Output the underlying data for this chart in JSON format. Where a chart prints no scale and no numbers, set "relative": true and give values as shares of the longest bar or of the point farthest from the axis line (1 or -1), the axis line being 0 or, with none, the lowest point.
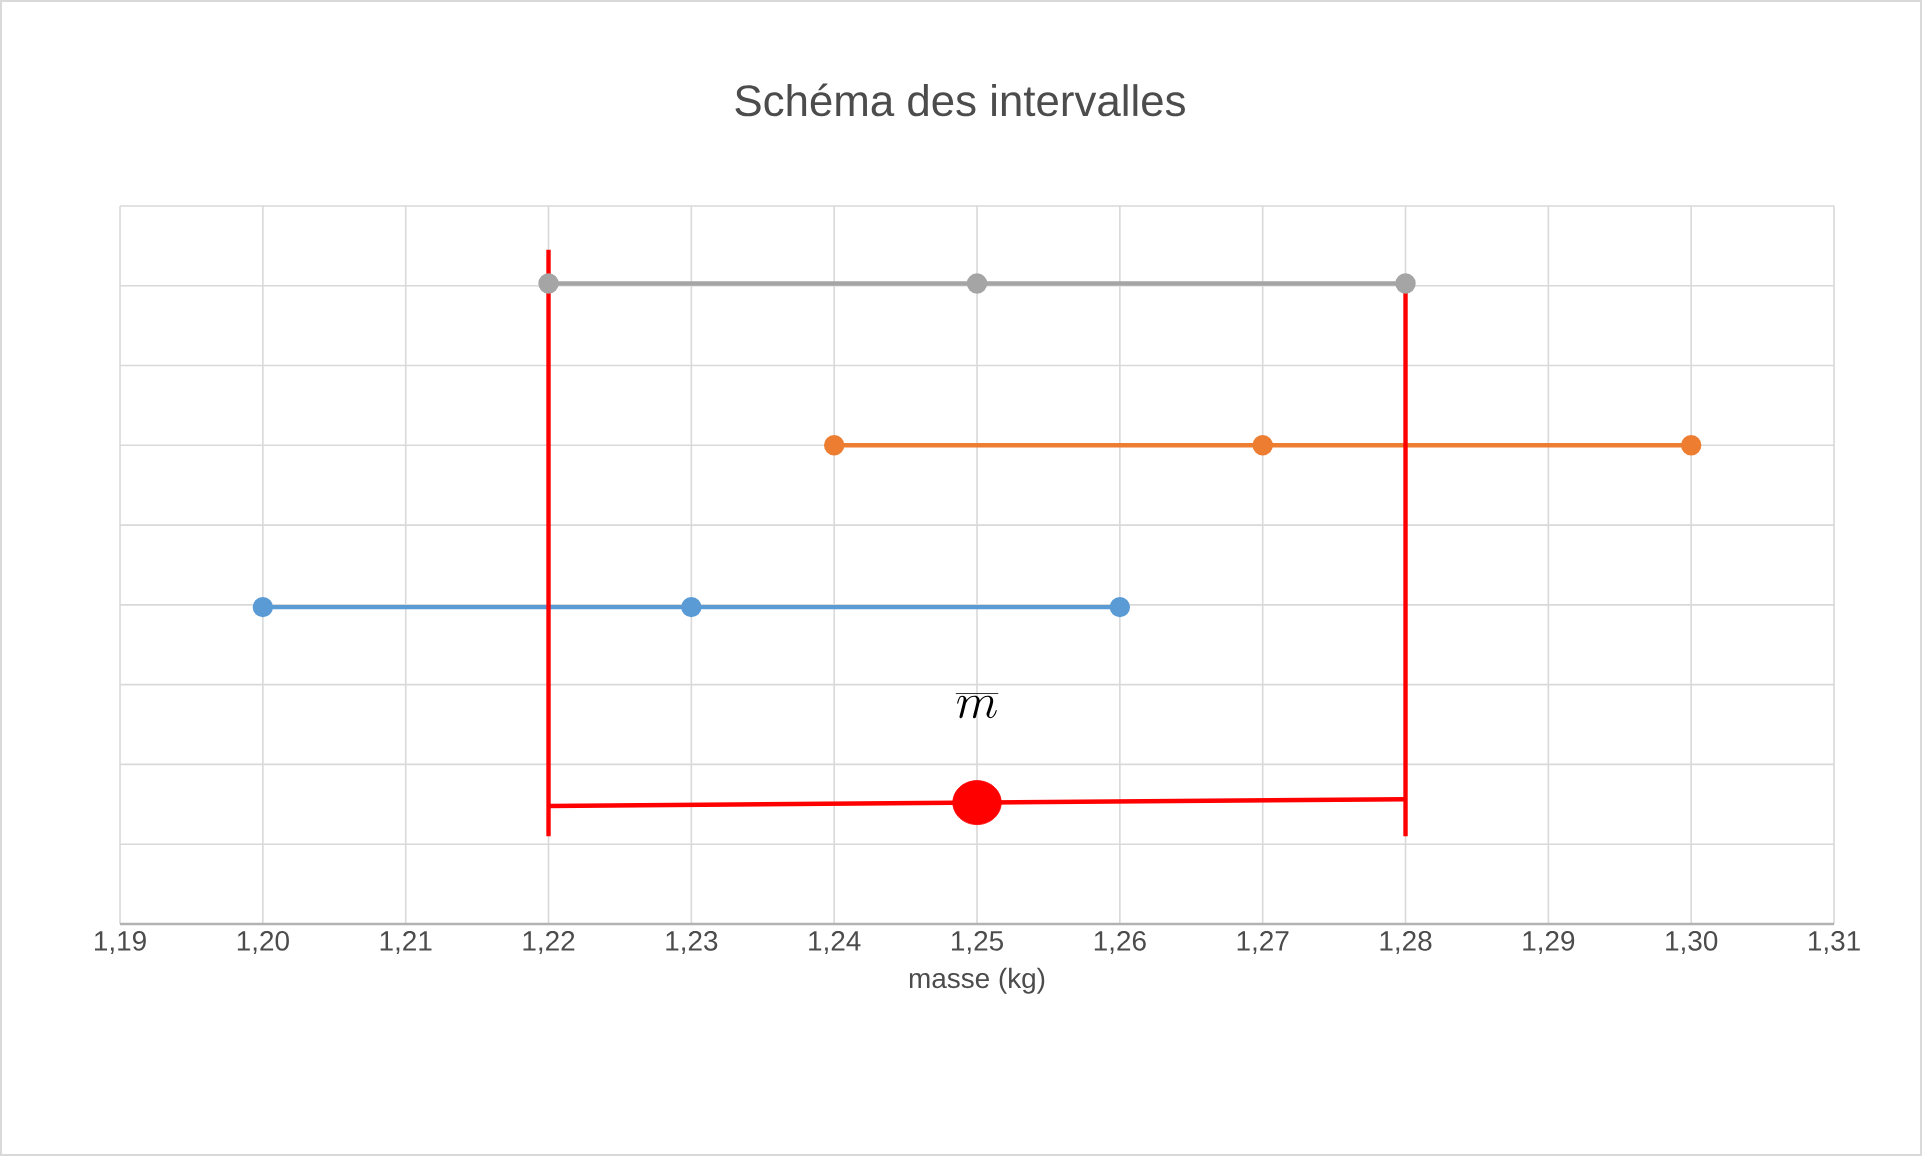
{
  "chart_data": {
    "type": "line",
    "title": "Schéma des intervalles",
    "xlabel": "masse (kg)",
    "xlim": [
      1.19,
      1.31
    ],
    "xticks": [
      {
        "value": 1.19,
        "label": "1,19"
      },
      {
        "value": 1.2,
        "label": "1,20"
      },
      {
        "value": 1.21,
        "label": "1,21"
      },
      {
        "value": 1.22,
        "label": "1,22"
      },
      {
        "value": 1.23,
        "label": "1,23"
      },
      {
        "value": 1.24,
        "label": "1,24"
      },
      {
        "value": 1.25,
        "label": "1,25"
      },
      {
        "value": 1.26,
        "label": "1,26"
      },
      {
        "value": 1.27,
        "label": "1,27"
      },
      {
        "value": 1.28,
        "label": "1,28"
      },
      {
        "value": 1.29,
        "label": "1,29"
      },
      {
        "value": 1.3,
        "label": "1,30"
      },
      {
        "value": 1.31,
        "label": "1,31"
      }
    ],
    "relative": true,
    "grid": true,
    "marker": "circle",
    "series": [
      {
        "color": "#5b9bd5",
        "x": [
          1.2,
          1.23,
          1.26
        ],
        "values": [
          0.47,
          0.47,
          0.47
        ]
      },
      {
        "color": "#ed7d31",
        "x": [
          1.24,
          1.27,
          1.3
        ],
        "values": [
          0.71,
          0.71,
          0.71
        ]
      },
      {
        "color": "#a5a5a5",
        "x": [
          1.22,
          1.25,
          1.28
        ],
        "values": [
          0.95,
          0.95,
          0.95
        ]
      },
      {
        "color": "#ff0000",
        "marker": "none",
        "x": [
          1.22,
          1.28
        ],
        "values": [
          0.175,
          0.185
        ]
      },
      {
        "color": "#ff0000",
        "marker": "none",
        "x": [
          1.22,
          1.22
        ],
        "values": [
          0.13,
          1
        ]
      },
      {
        "color": "#ff0000",
        "marker": "none",
        "x": [
          1.28,
          1.28
        ],
        "values": [
          0.13,
          0.95
        ]
      },
      {
        "type": "scatter",
        "color": "#ff0000",
        "x": [
          1.25
        ],
        "values": [
          0.18
        ]
      }
    ],
    "annotations": [
      "\\overline{m}"
    ]
  }
}
